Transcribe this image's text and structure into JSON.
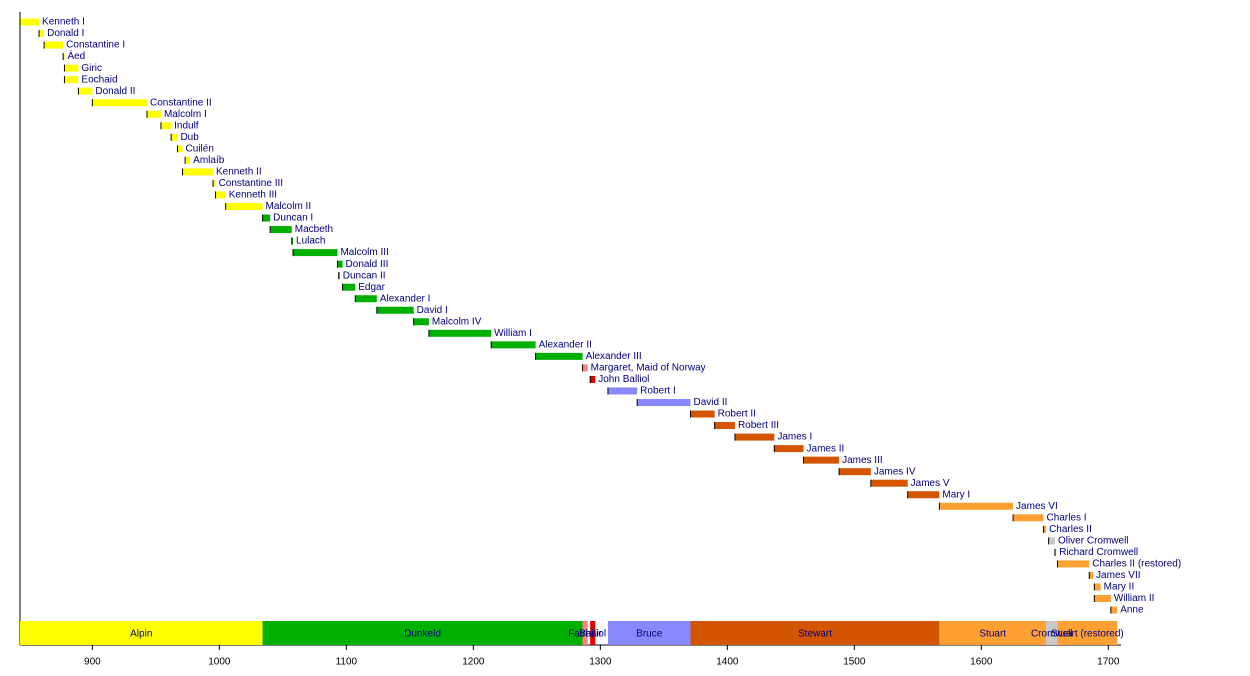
{
  "chart_data": {
    "type": "timeline",
    "categories": [
      "Kenneth I",
      "Donald I",
      "Constantine I",
      "Áed",
      "Giric",
      "Eochaid",
      "Donald II",
      "Constantine II",
      "Malcolm I",
      "Indulf",
      "Dub",
      "Cuilén",
      "Amlaíb",
      "Kenneth II",
      "Constantine III",
      "Kenneth III",
      "Malcolm II",
      "Duncan I",
      "Macbeth",
      "Lulach",
      "Malcolm III",
      "Donald III",
      "Duncan II",
      "Edgar",
      "Alexander I",
      "David I",
      "Malcolm IV",
      "William I",
      "Alexander II",
      "Alexander III",
      "Margaret, Maid of Norway",
      "John Balliol",
      "Robert I",
      "David II",
      "Robert II",
      "Robert III",
      "James I",
      "James II",
      "James III",
      "James IV",
      "James V",
      "Mary I",
      "James VI",
      "Charles I",
      "Charles II",
      "Oliver Cromwell",
      "Richard Cromwell",
      "Charles II (restored)",
      "James VII",
      "Mary II",
      "William II",
      "Anne"
    ],
    "start": [
      843,
      858,
      862,
      877,
      878,
      878,
      889,
      900,
      943,
      954,
      962,
      967,
      973,
      971,
      995,
      997,
      1005,
      1034,
      1040,
      1057,
      1058,
      1093,
      1094,
      1097,
      1107,
      1124,
      1153,
      1165,
      1214,
      1249,
      1286,
      1292,
      1306,
      1329,
      1371,
      1390,
      1406,
      1437,
      1460,
      1488,
      1513,
      1542,
      1567,
      1625,
      1649,
      1653,
      1658,
      1660,
      1685,
      1689,
      1689,
      1702
    ],
    "end": [
      858,
      862,
      877,
      878,
      889,
      889,
      900,
      943,
      954,
      962,
      967,
      971,
      977,
      995,
      997,
      1005,
      1034,
      1040,
      1057,
      1058,
      1093,
      1097,
      1094,
      1107,
      1124,
      1153,
      1165,
      1214,
      1249,
      1286,
      1290,
      1296,
      1329,
      1371,
      1390,
      1406,
      1437,
      1460,
      1488,
      1513,
      1542,
      1567,
      1625,
      1649,
      1651,
      1658,
      1659,
      1685,
      1688,
      1694,
      1702,
      1707
    ],
    "colors": [
      "#ffff00",
      "#ffff00",
      "#ffff00",
      "#ffff00",
      "#ffff00",
      "#ffff00",
      "#ffff00",
      "#ffff00",
      "#ffff00",
      "#ffff00",
      "#ffff00",
      "#ffff00",
      "#ffff00",
      "#ffff00",
      "#ffff00",
      "#ffff00",
      "#ffff00",
      "#00b000",
      "#00b000",
      "#00b000",
      "#00b000",
      "#00b000",
      "#00b000",
      "#00b000",
      "#00b000",
      "#00b000",
      "#00b000",
      "#00b000",
      "#00b000",
      "#00b000",
      "#ff8080",
      "#dd0000",
      "#8888ff",
      "#8888ff",
      "#d45500",
      "#d45500",
      "#d45500",
      "#d45500",
      "#d45500",
      "#d45500",
      "#d45500",
      "#d45500",
      "#ffa033",
      "#ffa033",
      "#ffa033",
      "#c8c8c8",
      "#c8c8c8",
      "#ffa033",
      "#ffa033",
      "#ffa033",
      "#ffa033",
      "#ffa033"
    ],
    "periods": {
      "names": [
        "Alpin",
        "Dunkeld",
        "Fairhair",
        "Balliol",
        "Bruce",
        "Stewart",
        "Stuart",
        "Cromwell",
        "Stuart (restored)"
      ],
      "start": [
        843,
        1034,
        1286,
        1292,
        1306,
        1371,
        1567,
        1651,
        1660
      ],
      "end": [
        1034,
        1286,
        1290,
        1296,
        1371,
        1567,
        1651,
        1660,
        1707
      ],
      "colors": [
        "#ffff00",
        "#00b000",
        "#ff8080",
        "#dd0000",
        "#8888ff",
        "#d45500",
        "#ffa033",
        "#c8c8c8",
        "#ffa033"
      ]
    },
    "xlim": [
      843,
      1710
    ],
    "xticks": [
      900,
      1000,
      1100,
      1200,
      1300,
      1400,
      1500,
      1600,
      1700
    ]
  }
}
